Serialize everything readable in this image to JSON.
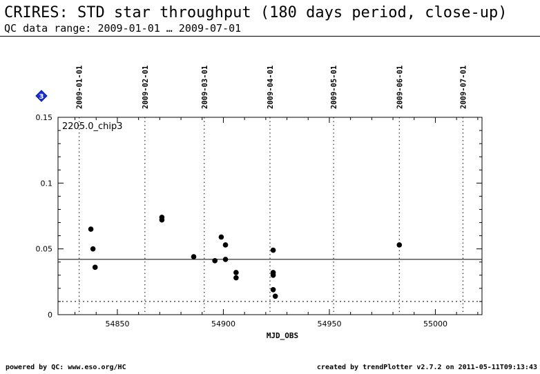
{
  "header": {
    "title": "CRIRES: STD star throughput (180 days period, close-up)",
    "subtitle": "QC data range: 2009-01-01 … 2009-07-01"
  },
  "chart_data": {
    "type": "scatter",
    "panel_label": "2205.0_chip3",
    "marker_label": "3",
    "marker_color": "#1a2fd6",
    "xlabel": "MJD_OBS",
    "ylabel": "",
    "xlim": [
      54822,
      55022
    ],
    "ylim": [
      0,
      0.15
    ],
    "x_ticks": [
      54850,
      54900,
      54950,
      55000
    ],
    "x_tick_labels": [
      "54850",
      "54900",
      "54950",
      "55000"
    ],
    "y_ticks": [
      0,
      0.05,
      0.1,
      0.15
    ],
    "y_tick_labels": [
      "0",
      "0.05",
      "0.1",
      "0.15"
    ],
    "date_markers": [
      {
        "mjd": 54832,
        "label": "2009-01-01"
      },
      {
        "mjd": 54863,
        "label": "2009-02-01"
      },
      {
        "mjd": 54891,
        "label": "2009-03-01"
      },
      {
        "mjd": 54922,
        "label": "2009-04-01"
      },
      {
        "mjd": 54952,
        "label": "2009-05-01"
      },
      {
        "mjd": 54983,
        "label": "2009-06-01"
      },
      {
        "mjd": 55013,
        "label": "2009-07-01"
      }
    ],
    "reference_lines": [
      {
        "y": 0.042,
        "style": "solid"
      },
      {
        "y": 0.01,
        "style": "dotted"
      }
    ],
    "points": [
      {
        "x": 54837.5,
        "y": 0.065
      },
      {
        "x": 54838.5,
        "y": 0.05
      },
      {
        "x": 54839.5,
        "y": 0.036
      },
      {
        "x": 54871.0,
        "y": 0.074
      },
      {
        "x": 54871.0,
        "y": 0.072
      },
      {
        "x": 54886.0,
        "y": 0.044
      },
      {
        "x": 54896.0,
        "y": 0.041
      },
      {
        "x": 54899.0,
        "y": 0.059
      },
      {
        "x": 54901.0,
        "y": 0.053
      },
      {
        "x": 54901.0,
        "y": 0.042
      },
      {
        "x": 54906.0,
        "y": 0.032
      },
      {
        "x": 54906.0,
        "y": 0.028
      },
      {
        "x": 54923.5,
        "y": 0.049
      },
      {
        "x": 54923.5,
        "y": 0.032
      },
      {
        "x": 54923.5,
        "y": 0.03
      },
      {
        "x": 54923.5,
        "y": 0.019
      },
      {
        "x": 54924.5,
        "y": 0.014
      },
      {
        "x": 54983.0,
        "y": 0.053
      }
    ],
    "grid": false,
    "legend": "none"
  },
  "footer": {
    "left": "powered by QC: www.eso.org/HC",
    "right": "created by trendPlotter v2.7.2 on 2011-05-11T09:13:43"
  }
}
